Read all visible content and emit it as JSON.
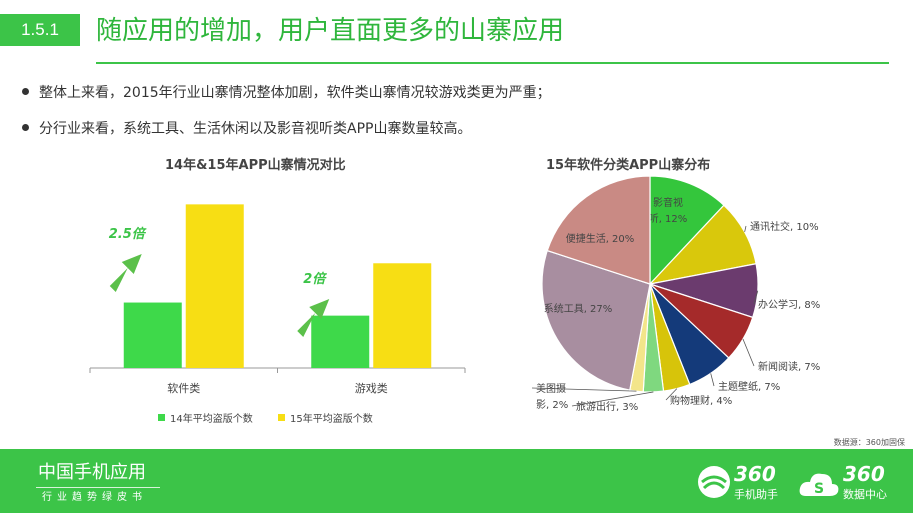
{
  "header": {
    "section_number": "1.5.1",
    "title": "随应用的增加，用户直面更多的山寨应用"
  },
  "bullets": [
    "整体上来看，2015年行业山寨情况整体加剧，软件类山寨情况较游戏类更为严重；",
    "分行业来看，系统工具、生活休闲以及影音视听类APP山寨数量较高。"
  ],
  "colors": {
    "brand_green": "#3cc448",
    "series_2014": "#3ed94a",
    "series_2015": "#f7de14"
  },
  "chart_data": [
    {
      "type": "bar",
      "title": "14年&15年APP山寨情况对比",
      "categories": [
        "软件类",
        "游戏类"
      ],
      "series": [
        {
          "name": "14年平均盗版个数",
          "values": [
            0.4,
            0.32
          ],
          "color": "#3ed94a"
        },
        {
          "name": "15年平均盗版个数",
          "values": [
            1.0,
            0.64
          ],
          "color": "#f7de14"
        }
      ],
      "annotations": [
        "2.5倍",
        "2倍"
      ],
      "ylim": [
        0,
        1.1
      ],
      "legend": "bottom",
      "grid": false
    },
    {
      "type": "pie",
      "title": "15年软件分类APP山寨分布",
      "slices": [
        {
          "label": "影音视听",
          "label_lines": [
            "影音视",
            "听, 12%"
          ],
          "value": 12,
          "color": "#34c63c"
        },
        {
          "label": "通讯社交",
          "label_lines": [
            "通讯社交, 10%"
          ],
          "value": 10,
          "color": "#d9c80c"
        },
        {
          "label": "办公学习",
          "label_lines": [
            "办公学习, 8%"
          ],
          "value": 8,
          "color": "#6b3b6e"
        },
        {
          "label": "新闻阅读",
          "label_lines": [
            "新闻阅读, 7%"
          ],
          "value": 7,
          "color": "#a52a2a"
        },
        {
          "label": "主题壁纸",
          "label_lines": [
            "主题壁纸, 7%"
          ],
          "value": 7,
          "color": "#143a7a"
        },
        {
          "label": "购物理财",
          "label_lines": [
            "购物理财, 4%"
          ],
          "value": 4,
          "color": "#d7c40a"
        },
        {
          "label": "旅游出行",
          "label_lines": [
            "旅游出行, 3%"
          ],
          "value": 3,
          "color": "#7fd87f"
        },
        {
          "label": "美图摄影",
          "label_lines": [
            "美图摄",
            "影, 2%"
          ],
          "value": 2,
          "color": "#f3e58a"
        },
        {
          "label": "系统工具",
          "label_lines": [
            "系统工具, 27%"
          ],
          "value": 27,
          "color": "#a88ea0"
        },
        {
          "label": "便捷生活",
          "label_lines": [
            "便捷生活, 20%"
          ],
          "value": 20,
          "color": "#c98a84"
        }
      ]
    }
  ],
  "source": "数据源：360加固保",
  "footer": {
    "title": "中国手机应用",
    "subtitle": "行业趋势绿皮书",
    "logo1_number": "360",
    "logo1_text": "手机助手",
    "logo2_number": "360",
    "logo2_text": "数据中心"
  }
}
